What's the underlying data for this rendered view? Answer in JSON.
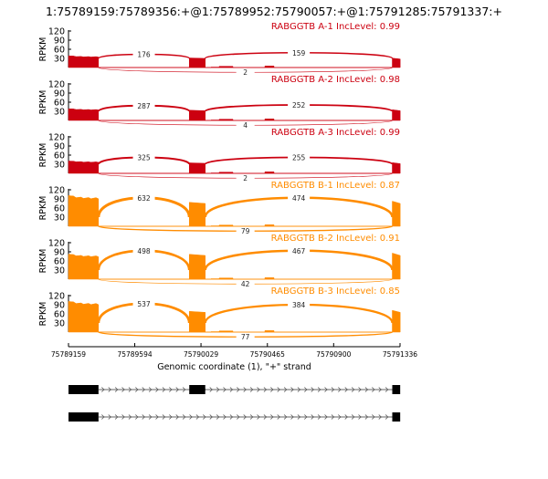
{
  "chart_data": {
    "type": "sashimi",
    "title": "1:75789159:75789356:+@1:75789952:75790057:+@1:75791285:75791337:+",
    "xlabel": "Genomic coordinate (1), \"+\" strand",
    "ylabel": "RPKM",
    "xlim": [
      75789159,
      75791336
    ],
    "ylim": [
      0,
      120
    ],
    "yticks": [
      30,
      60,
      90,
      120
    ],
    "xticks": [
      75789159,
      75789594,
      75790029,
      75790465,
      75790900,
      75791336
    ],
    "exons": [
      [
        75789159,
        75789356
      ],
      [
        75789952,
        75790057
      ],
      [
        75791285,
        75791337
      ]
    ],
    "panels": [
      {
        "label": "RABGGTB A-1 IncLevel: 0.99",
        "color": "#cc0010",
        "exon_rpkm": [
          35,
          30,
          28
        ],
        "junctions": {
          "e1_e2": 176,
          "e2_e3": 159,
          "e1_e3": 2
        },
        "arc_peak": [
          48,
          55
        ]
      },
      {
        "label": "RABGGTB A-2 IncLevel: 0.98",
        "color": "#cc0010",
        "exon_rpkm": [
          35,
          32,
          32
        ],
        "junctions": {
          "e1_e2": 287,
          "e2_e3": 252,
          "e1_e3": 4
        },
        "arc_peak": [
          55,
          58
        ]
      },
      {
        "label": "RABGGTB A-3 IncLevel: 0.99",
        "color": "#cc0010",
        "exon_rpkm": [
          37,
          33,
          32
        ],
        "junctions": {
          "e1_e2": 325,
          "e2_e3": 255,
          "e1_e3": 2
        },
        "arc_peak": [
          60,
          60
        ]
      },
      {
        "label": "RABGGTB B-1 IncLevel: 0.87",
        "color": "#ff8c00",
        "exon_rpkm": [
          92,
          75,
          75
        ],
        "junctions": {
          "e1_e2": 632,
          "e2_e3": 474,
          "e1_e3": 79
        },
        "arc_peak": [
          135,
          125
        ]
      },
      {
        "label": "RABGGTB B-2 IncLevel: 0.91",
        "color": "#ff8c00",
        "exon_rpkm": [
          75,
          78,
          78
        ],
        "junctions": {
          "e1_e2": 498,
          "e2_e3": 467,
          "e1_e3": 42
        },
        "arc_peak": [
          125,
          130
        ]
      },
      {
        "label": "RABGGTB B-3 IncLevel: 0.85",
        "color": "#ff8c00",
        "exon_rpkm": [
          92,
          65,
          65
        ],
        "junctions": {
          "e1_e2": 537,
          "e2_e3": 384,
          "e1_e3": 77
        },
        "arc_peak": [
          125,
          110
        ]
      }
    ],
    "isoforms": [
      {
        "exons": [
          [
            75789159,
            75789356
          ],
          [
            75789952,
            75790057
          ],
          [
            75791285,
            75791337
          ]
        ]
      },
      {
        "exons": [
          [
            75789159,
            75789356
          ],
          [
            75791285,
            75791337
          ]
        ]
      }
    ]
  }
}
